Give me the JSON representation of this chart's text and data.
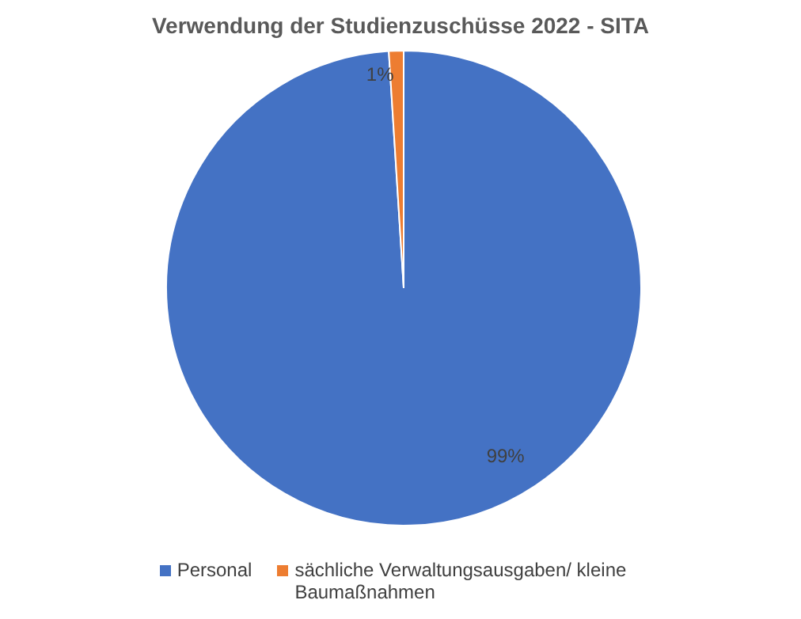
{
  "chart_data": {
    "type": "pie",
    "title": "Verwendung der Studienzuschüsse 2022 - SITA",
    "categories": [
      "Personal",
      "sächliche Verwaltungsausgaben/ kleine Baumaßnahmen"
    ],
    "values": [
      99,
      1
    ],
    "colors": [
      "#4472c4",
      "#ed7d31"
    ],
    "value_labels": [
      "99%",
      "1%"
    ],
    "legend": "bottom"
  }
}
